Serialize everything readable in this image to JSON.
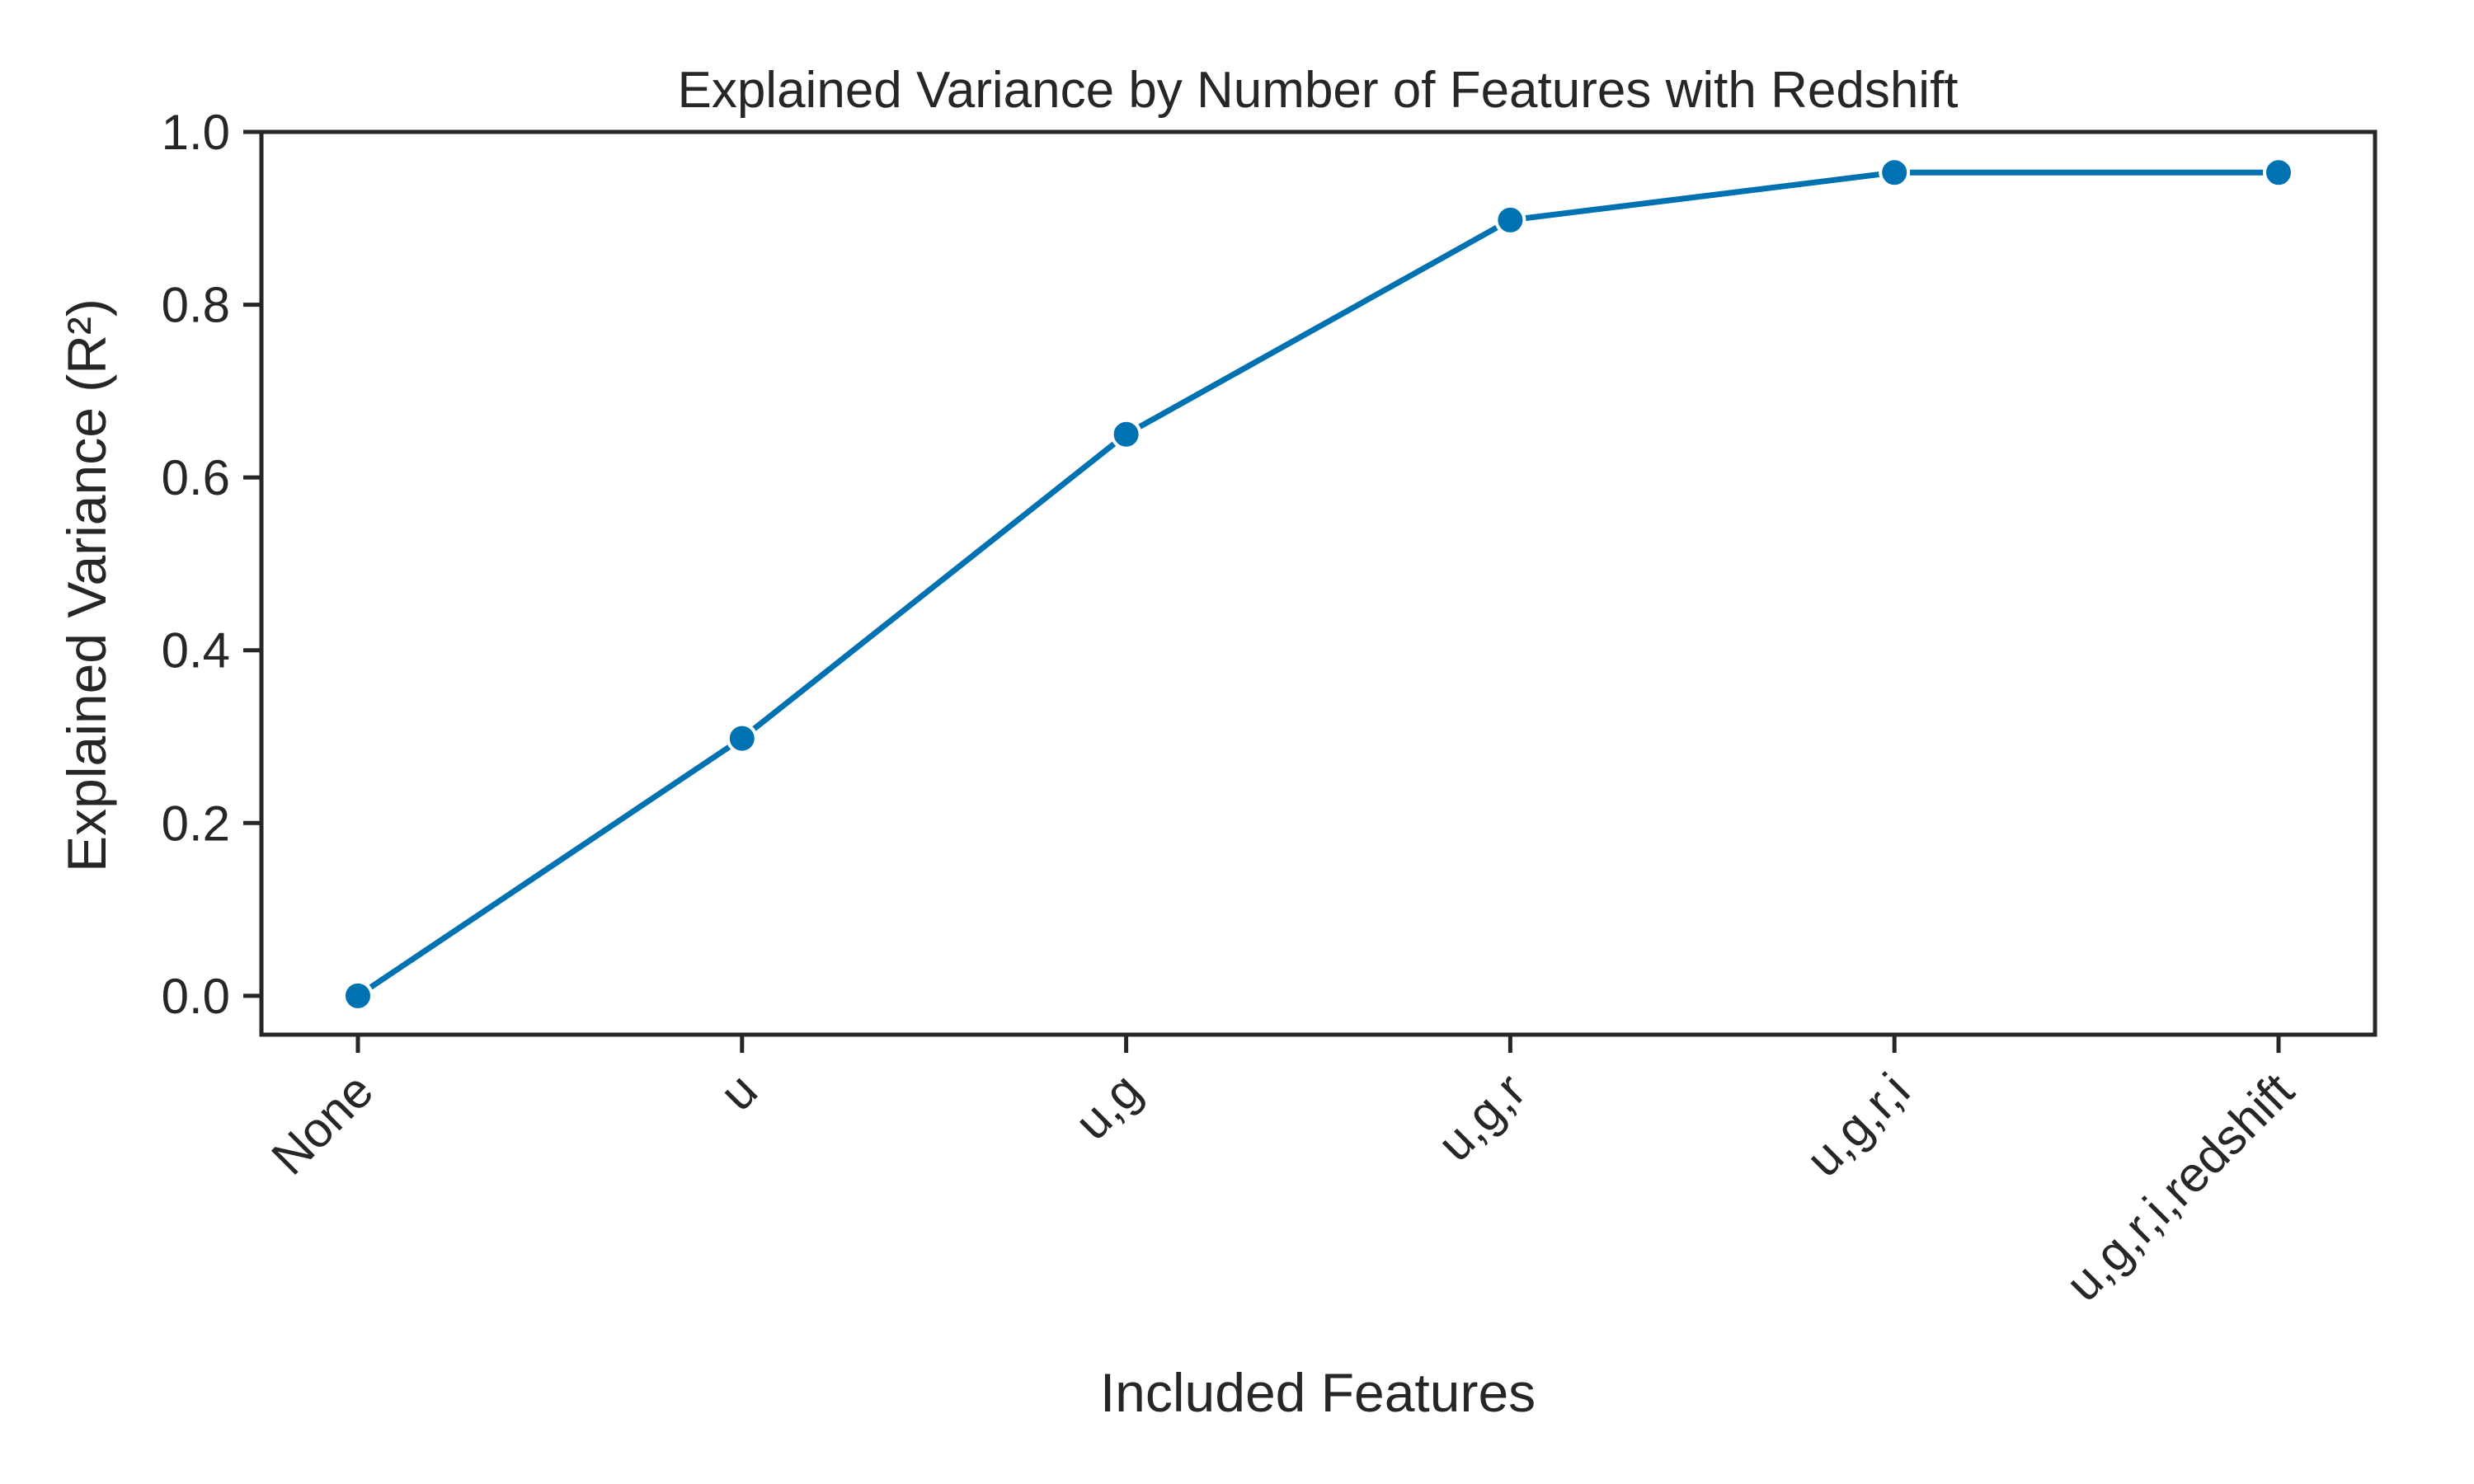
{
  "chart_data": {
    "type": "line",
    "title": "Explained Variance by Number of Features with Redshift",
    "xlabel": "Included Features",
    "ylabel": "Explained Variance (R²)",
    "categories": [
      "None",
      "u",
      "u,g",
      "u,g,r",
      "u,g,r,i",
      "u,g,r,i,redshift"
    ],
    "values": [
      0.0,
      0.298,
      0.65,
      0.898,
      0.953,
      0.953
    ],
    "ylim": [
      -0.045,
      1.0
    ],
    "yticks": [
      0.0,
      0.2,
      0.4,
      0.6,
      0.8,
      1.0
    ],
    "ytick_labels": [
      "0.0",
      "0.2",
      "0.4",
      "0.6",
      "0.8",
      "1.0"
    ],
    "grid": false,
    "legend": "none",
    "x_tick_rotation_deg": 45,
    "colors": {
      "line": "#0072b2",
      "marker": "#0072b2",
      "axes": "#262626",
      "text": "#262626",
      "background": "#ffffff"
    },
    "marker": "circle"
  }
}
